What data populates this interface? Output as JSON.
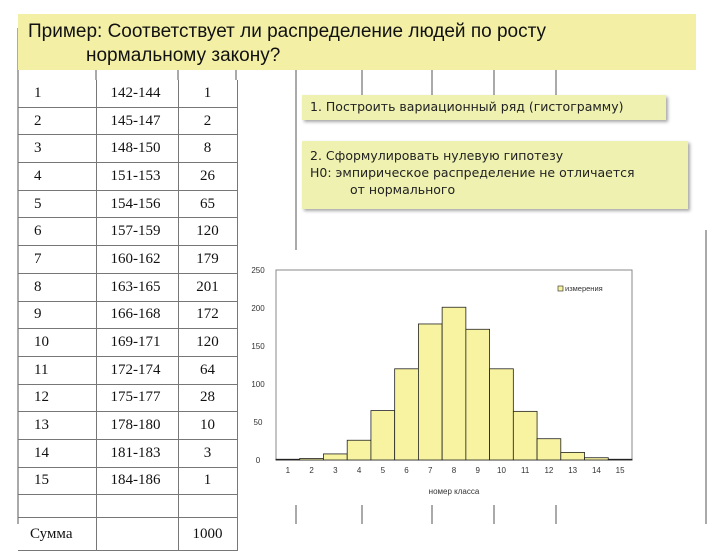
{
  "title": {
    "line1": "Пример: Соответствует ли распределение людей по росту",
    "line2": "нормальному закону?"
  },
  "table": {
    "rows": [
      {
        "n": "1",
        "range": "142-144",
        "count": "1"
      },
      {
        "n": "2",
        "range": "145-147",
        "count": "2"
      },
      {
        "n": "3",
        "range": "148-150",
        "count": "8"
      },
      {
        "n": "4",
        "range": "151-153",
        "count": "26"
      },
      {
        "n": "5",
        "range": "154-156",
        "count": "65"
      },
      {
        "n": "6",
        "range": "157-159",
        "count": "120"
      },
      {
        "n": "7",
        "range": "160-162",
        "count": "179"
      },
      {
        "n": "8",
        "range": "163-165",
        "count": "201"
      },
      {
        "n": "9",
        "range": "166-168",
        "count": "172"
      },
      {
        "n": "10",
        "range": "169-171",
        "count": "120"
      },
      {
        "n": "11",
        "range": "172-174",
        "count": "64"
      },
      {
        "n": "12",
        "range": "175-177",
        "count": "28"
      },
      {
        "n": "13",
        "range": "178-180",
        "count": "10"
      },
      {
        "n": "14",
        "range": "181-183",
        "count": "3"
      },
      {
        "n": "15",
        "range": "184-186",
        "count": "1"
      }
    ],
    "sum_label": "Сумма",
    "sum_value": "1000"
  },
  "notes": {
    "step1": "1. Построить вариационный ряд (гистограмму)",
    "step2_line1": "2. Сформулировать нулевую гипотезу",
    "step2_line2": "Н0: эмпирическое распределение не отличается",
    "step2_line3": "от нормального"
  },
  "chart_data": {
    "type": "bar",
    "categories": [
      "1",
      "2",
      "3",
      "4",
      "5",
      "6",
      "7",
      "8",
      "9",
      "10",
      "11",
      "12",
      "13",
      "14",
      "15"
    ],
    "series": [
      {
        "name": "измерения",
        "values": [
          1,
          2,
          8,
          26,
          65,
          120,
          179,
          201,
          172,
          120,
          64,
          28,
          10,
          3,
          1
        ],
        "color": "#f7f3a0"
      }
    ],
    "xlabel": "номер класса",
    "ylabel": "",
    "ylim": [
      0,
      250
    ],
    "yticks": [
      0,
      50,
      100,
      150,
      200,
      250
    ],
    "legend": "top-right",
    "grid": false
  }
}
